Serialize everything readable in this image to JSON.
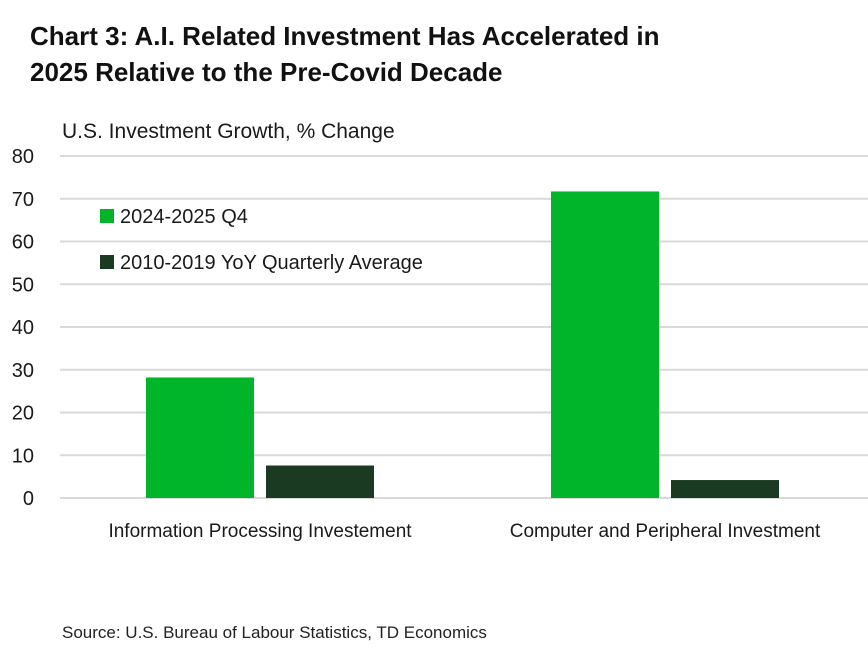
{
  "title_lines": [
    "Chart 3: A.I. Related Investment Has Accelerated in",
    "2025 Relative to the Pre-Covid Decade"
  ],
  "source": "Source: U.S. Bureau of Labour Statistics, TD Economics",
  "colors": {
    "series_1": "#00b52a",
    "series_2": "#1b3a22",
    "grid": "#d9d9d9"
  },
  "chart_data": {
    "type": "bar",
    "title": "Chart 3: A.I. Related Investment Has Accelerated in 2025 Relative to the Pre-Covid Decade",
    "ylabel": "U.S. Investment Growth, % Change",
    "xlabel": "",
    "ylim": [
      0,
      80
    ],
    "yticks": [
      0,
      10,
      20,
      30,
      40,
      50,
      60,
      70,
      80
    ],
    "grid": true,
    "legend_position": "top-left",
    "categories": [
      "Information Processing Investement",
      "Computer and Peripheral Investment"
    ],
    "series": [
      {
        "name": "2024-2025 Q4",
        "values": [
          28.2,
          71.7
        ]
      },
      {
        "name": "2010-2019 YoY Quarterly Average",
        "values": [
          7.6,
          4.2
        ]
      }
    ]
  }
}
